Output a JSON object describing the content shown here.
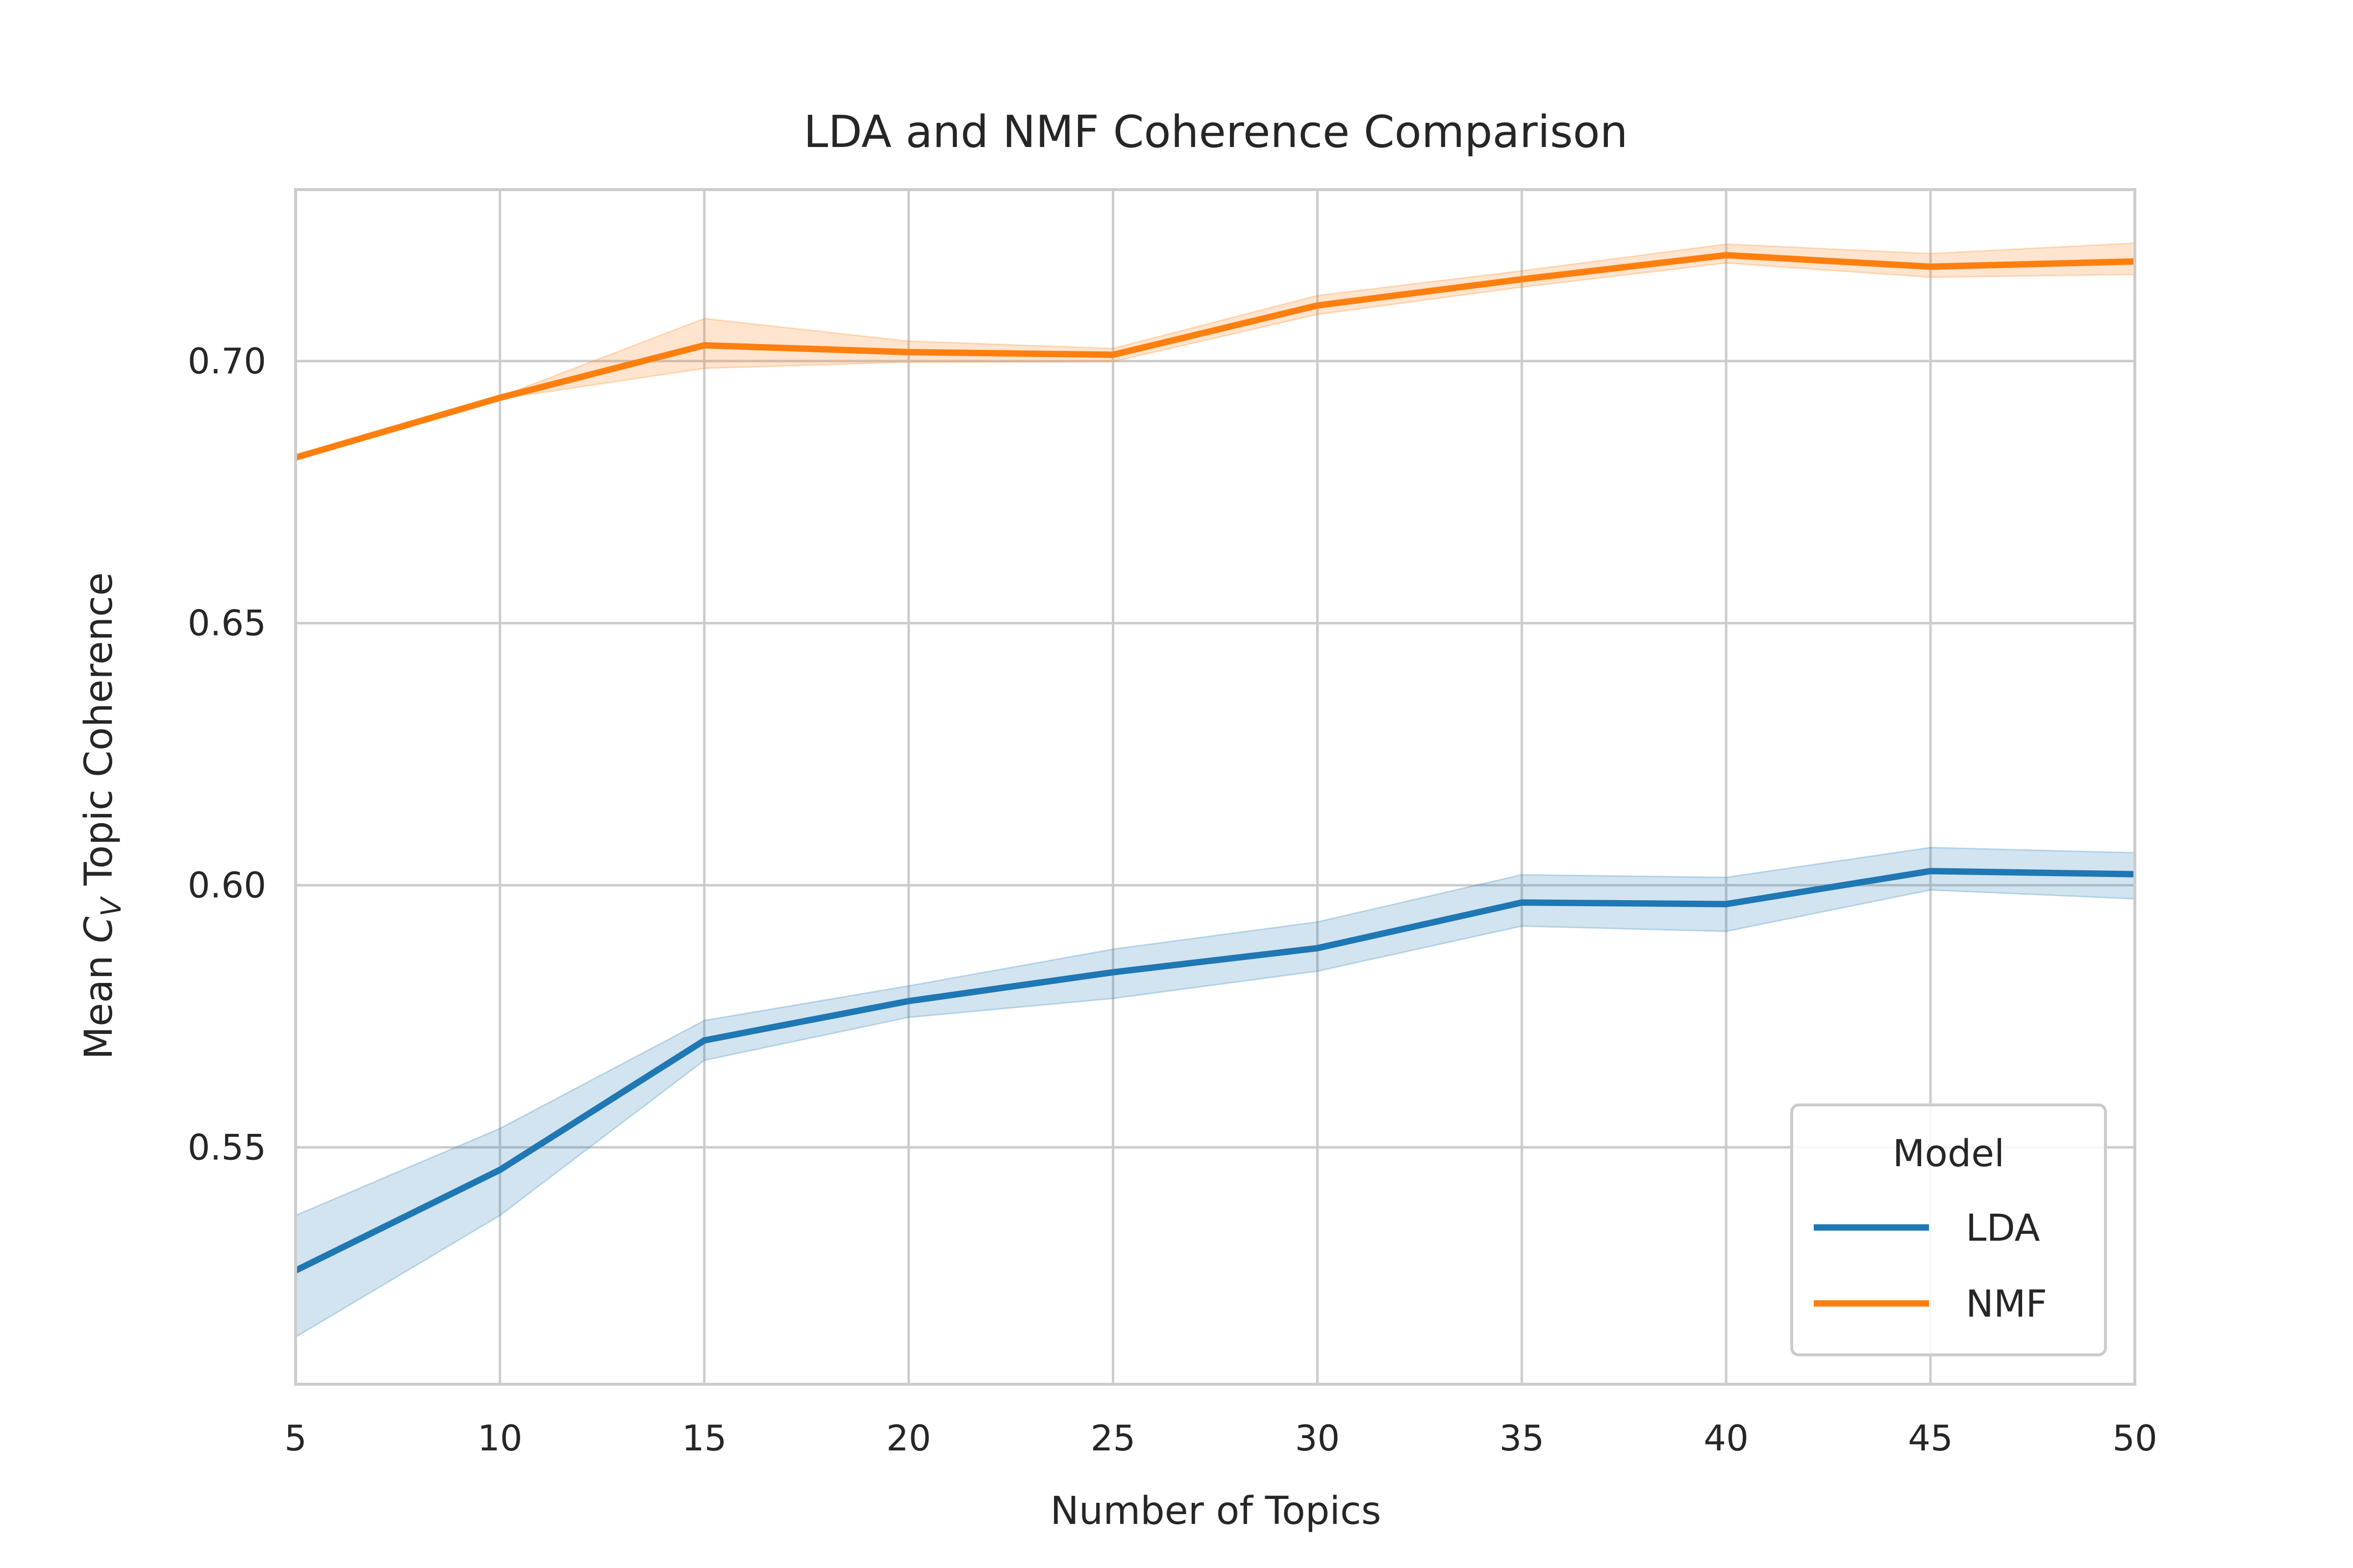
{
  "chart_data": {
    "type": "line",
    "title": "LDA and NMF Coherence Comparison",
    "xlabel": "Number of Topics",
    "ylabel": {
      "prefix": "Mean ",
      "math": "C",
      "sub": "V",
      "suffix": " Topic Coherence"
    },
    "x": [
      5,
      10,
      15,
      20,
      25,
      30,
      35,
      40,
      45,
      50
    ],
    "xlim": [
      5,
      50
    ],
    "ylim": [
      0.5048,
      0.7327
    ],
    "xticks": [
      "5",
      "10",
      "15",
      "20",
      "25",
      "30",
      "35",
      "40",
      "45",
      "50"
    ],
    "yticks": [
      {
        "value": 0.55,
        "label": "0.55"
      },
      {
        "value": 0.6,
        "label": "0.60"
      },
      {
        "value": 0.65,
        "label": "0.65"
      },
      {
        "value": 0.7,
        "label": "0.70"
      }
    ],
    "grid": true,
    "legend": {
      "title": "Model",
      "placement": "lower-right"
    },
    "series": [
      {
        "name": "LDA",
        "color": "#1f77b4",
        "values": [
          0.5265,
          0.5457,
          0.5704,
          0.5779,
          0.5834,
          0.588,
          0.5967,
          0.5964,
          0.6027,
          0.6021
        ],
        "ci_low": [
          0.5138,
          0.537,
          0.5666,
          0.5748,
          0.5784,
          0.5836,
          0.5922,
          0.5912,
          0.5991,
          0.5974
        ],
        "ci_high": [
          0.537,
          0.5536,
          0.5742,
          0.5808,
          0.5878,
          0.593,
          0.602,
          0.6015,
          0.6072,
          0.6062
        ]
      },
      {
        "name": "NMF",
        "color": "#ff7f0e",
        "values": [
          0.6816,
          0.693,
          0.703,
          0.7017,
          0.7012,
          0.7106,
          0.7156,
          0.7202,
          0.718,
          0.719
        ],
        "ci_low": [
          0.6816,
          0.6928,
          0.6986,
          0.6998,
          0.6999,
          0.7089,
          0.7141,
          0.7187,
          0.716,
          0.7165
        ],
        "ci_high": [
          0.6816,
          0.6932,
          0.7081,
          0.7038,
          0.7024,
          0.7125,
          0.7172,
          0.7223,
          0.7205,
          0.7225
        ]
      }
    ]
  }
}
